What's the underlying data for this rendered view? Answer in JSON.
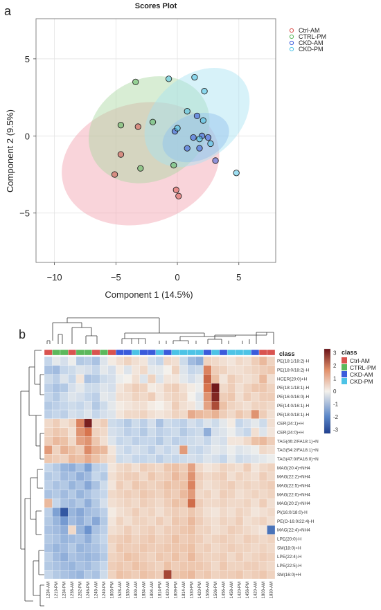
{
  "panels": {
    "a": "a",
    "b": "b"
  },
  "colors": {
    "ctrl_am": "#d9534f",
    "ctrl_pm": "#5cb85c",
    "ckd_am": "#3b5bdb",
    "ckd_pm": "#4dc3e6",
    "heat_low": "#1f3f8f",
    "heat_mid": "#f4f1ec",
    "heat_high": "#6b1218"
  },
  "chart_data": [
    {
      "type": "scatter",
      "title": "Scores Plot",
      "xlabel": "Component 1 (14.5%)",
      "ylabel": "Component  2 (9.5%)",
      "xlim": [
        -11.5,
        8
      ],
      "ylim": [
        -8.2,
        7.6
      ],
      "xticks": [
        -10,
        -5,
        0,
        5
      ],
      "yticks": [
        -5,
        0,
        5
      ],
      "grid": true,
      "legend_position": "top-right",
      "series": [
        {
          "name": "Ctrl-AM",
          "color": "#d9534f",
          "points": [
            [
              -3.2,
              0.6
            ],
            [
              -4.6,
              -1.2
            ],
            [
              -5.1,
              -2.5
            ],
            [
              -0.1,
              -3.5
            ],
            [
              0.1,
              -3.9
            ]
          ]
        },
        {
          "name": "CTRL-PM",
          "color": "#5cb85c",
          "points": [
            [
              -3.4,
              3.5
            ],
            [
              -4.6,
              0.7
            ],
            [
              -2.0,
              0.9
            ],
            [
              -3.0,
              -2.1
            ],
            [
              -0.3,
              -1.9
            ]
          ]
        },
        {
          "name": "CKD-AM",
          "color": "#3b5bdb",
          "points": [
            [
              0.8,
              -0.8
            ],
            [
              1.3,
              -0.1
            ],
            [
              1.8,
              -0.8
            ],
            [
              2.0,
              0.0
            ],
            [
              1.6,
              1.3
            ],
            [
              2.5,
              -0.1
            ],
            [
              3.1,
              -1.6
            ],
            [
              -0.2,
              0.3
            ]
          ]
        },
        {
          "name": "CKD-PM",
          "color": "#4dc3e6",
          "points": [
            [
              -0.7,
              3.7
            ],
            [
              1.4,
              3.8
            ],
            [
              2.2,
              2.9
            ],
            [
              0.8,
              1.6
            ],
            [
              2.1,
              1.0
            ],
            [
              2.7,
              -0.5
            ],
            [
              4.8,
              -2.4
            ],
            [
              0.0,
              0.5
            ],
            [
              1.8,
              -0.2
            ]
          ]
        }
      ],
      "ellipses": [
        {
          "series": "Ctrl-AM",
          "color": "#f2a0ae",
          "cx": -3.0,
          "cy": -1.8,
          "rx": 6.5,
          "ry": 3.9,
          "angle": -15
        },
        {
          "series": "CTRL-PM",
          "color": "#a8d8a0",
          "cx": -2.3,
          "cy": 0.4,
          "rx": 5.1,
          "ry": 3.3,
          "angle": -27
        },
        {
          "series": "CKD-AM",
          "color": "#7fa3e8",
          "cx": 1.5,
          "cy": -0.1,
          "rx": 2.8,
          "ry": 1.5,
          "angle": -20
        },
        {
          "series": "CKD-PM",
          "color": "#a7e2f1",
          "cx": 1.6,
          "cy": 1.2,
          "rx": 4.8,
          "ry": 2.7,
          "angle": -40
        }
      ]
    },
    {
      "type": "heatmap",
      "legend_title": "class",
      "class_legend": [
        "Ctrl-AM",
        "CTRL-PM",
        "CKD-AM",
        "CKD-PM"
      ],
      "colorbar_ticks": [
        3,
        2,
        1,
        0,
        -1,
        -2,
        -3
      ],
      "value_range": [
        -3.3,
        3.3
      ],
      "columns": [
        "1234-AM",
        "1219-PM",
        "1234-PM",
        "1238-AM",
        "1252-PM",
        "1246-PM",
        "1248-AM",
        "1249-PM",
        "1803-PM",
        "1528-AM",
        "1530-AM",
        "1809-AM",
        "1834-AM",
        "1804-AM",
        "1814-PM",
        "1420-AM",
        "1809-PM",
        "1814-AM",
        "1530-PM",
        "1420-PM",
        "1506-AM",
        "1506-PM",
        "1456-AM",
        "1458-AM",
        "1420-PM",
        "1456-PM",
        "1420-AM",
        "1803-AM",
        "1830-AM"
      ],
      "column_classes": [
        "Ctrl-AM",
        "CTRL-PM",
        "CTRL-PM",
        "Ctrl-AM",
        "CTRL-PM",
        "CTRL-PM",
        "Ctrl-AM",
        "CTRL-PM",
        "Ctrl-AM",
        "CKD-AM",
        "CKD-AM",
        "CKD-PM",
        "CKD-AM",
        "CKD-AM",
        "CKD-PM",
        "CKD-AM",
        "CKD-PM",
        "CKD-PM",
        "CKD-PM",
        "CKD-PM",
        "CKD-AM",
        "CKD-PM",
        "CKD-AM",
        "CKD-PM",
        "CKD-PM",
        "CKD-PM",
        "CKD-AM",
        "Ctrl-AM",
        "Ctrl-AM"
      ],
      "rows": [
        "PE(18:1/18:2)-H",
        "PE(18:0/18:2)-H",
        "HCER(20:0)+H",
        "PE(18:1/18:1)-H",
        "PE(16:0/16:0)-H",
        "PE(14:0/16:1)-H",
        "PE(18:0/18:1)-H",
        "CER(24:1)+H",
        "CER(24:0)+H",
        "TAG(46:2/FA18:1)+N",
        "TAG(54:2/FA18:1)+N",
        "TAG(47:0/FA16:0)+N",
        "MAG(20:4)+NH4",
        "MAG(22:2)+NH4",
        "MAG(22:5)+NH4",
        "MAG(22:0)+NH4",
        "MAG(20:2)+NH4",
        "PI(16:0/18:0)-H",
        "PE(O-16:0/22:4)-H",
        "MAG(22:4)+NH4",
        "LPE(20:0)-H",
        "SM(18:0)+H",
        "LPE(22:4)-H",
        "LPE(22:5)-H",
        "SM(16:0)+H"
      ],
      "values": [
        [
          -0.6,
          -0.2,
          -0.4,
          -0.1,
          -0.8,
          -0.7,
          -0.9,
          -0.3,
          0.1,
          0.3,
          0.5,
          0.3,
          0.2,
          -0.4,
          -0.6,
          0.4,
          0.3,
          -0.5,
          -1.0,
          -1.2,
          0.5,
          0.4,
          0.3,
          0.2,
          0.4,
          0.3,
          0.6,
          0.9,
          0.5
        ],
        [
          -0.9,
          -1.0,
          -0.6,
          -0.5,
          -0.3,
          -0.4,
          -0.6,
          -0.2,
          -0.4,
          0.1,
          -0.3,
          0.2,
          0.4,
          -0.2,
          -0.2,
          0.0,
          0.5,
          -0.3,
          -0.6,
          -0.5,
          1.6,
          0.6,
          0.5,
          0.3,
          0.3,
          0.4,
          0.5,
          0.6,
          0.7
        ],
        [
          -0.5,
          -0.7,
          -0.3,
          -0.6,
          0.2,
          -0.9,
          -0.8,
          -0.5,
          -0.4,
          -0.1,
          0.0,
          0.3,
          -0.3,
          0.5,
          -0.3,
          0.2,
          0.2,
          -0.2,
          -0.4,
          -0.2,
          2.0,
          0.8,
          0.2,
          0.6,
          0.4,
          0.3,
          0.4,
          0.9,
          0.3
        ],
        [
          -0.7,
          -0.9,
          -0.8,
          -0.4,
          -0.2,
          -0.5,
          -0.5,
          -0.3,
          -0.4,
          0.2,
          0.4,
          0.6,
          0.5,
          0.1,
          0.2,
          0.5,
          0.6,
          0.3,
          0.1,
          -0.1,
          1.8,
          3.2,
          0.4,
          0.6,
          0.3,
          0.5,
          0.7,
          0.7,
          0.5
        ],
        [
          -0.6,
          -0.8,
          -0.5,
          -0.3,
          -0.4,
          -0.6,
          -0.7,
          -0.2,
          -0.3,
          0.3,
          0.3,
          0.5,
          0.4,
          0.6,
          0.2,
          0.4,
          0.5,
          0.4,
          0.0,
          -0.3,
          1.4,
          3.0,
          0.6,
          0.7,
          0.3,
          0.6,
          0.4,
          0.6,
          0.6
        ],
        [
          -0.8,
          -0.7,
          -0.6,
          -0.5,
          -0.6,
          -0.4,
          -0.8,
          -0.5,
          -0.2,
          0.1,
          0.2,
          0.3,
          0.3,
          0.1,
          0.0,
          0.2,
          0.6,
          0.3,
          0.2,
          -0.2,
          1.2,
          2.4,
          0.8,
          0.5,
          0.4,
          0.3,
          0.5,
          0.5,
          0.4
        ],
        [
          -0.7,
          -0.6,
          -0.7,
          -0.4,
          -0.5,
          -0.3,
          -0.6,
          -0.4,
          -0.3,
          0.2,
          0.4,
          0.4,
          0.5,
          0.3,
          0.2,
          0.3,
          0.5,
          0.4,
          1.1,
          0.9,
          0.8,
          1.0,
          0.6,
          0.4,
          0.7,
          0.5,
          1.4,
          0.6,
          0.3
        ],
        [
          0.4,
          0.6,
          0.3,
          0.5,
          1.6,
          3.1,
          0.4,
          0.6,
          -0.5,
          -0.6,
          -0.8,
          -0.5,
          -0.7,
          -0.4,
          -0.9,
          -0.5,
          -0.6,
          -0.7,
          -0.4,
          -0.6,
          -0.3,
          -0.5,
          -0.2,
          0.1,
          -0.6,
          -0.4,
          -0.2,
          -0.5,
          0.3
        ],
        [
          0.5,
          0.7,
          0.6,
          0.3,
          1.4,
          1.8,
          0.5,
          0.4,
          -0.4,
          -0.5,
          -0.7,
          -0.6,
          -0.8,
          -0.5,
          -0.7,
          -0.6,
          -0.5,
          -0.8,
          -0.6,
          -0.5,
          -1.2,
          -0.4,
          -0.3,
          -0.1,
          -0.4,
          -0.6,
          0.3,
          -0.3,
          0.2
        ],
        [
          0.6,
          0.9,
          0.8,
          0.4,
          1.2,
          1.4,
          0.7,
          0.3,
          -0.3,
          -0.6,
          -0.5,
          -0.7,
          -0.6,
          -0.6,
          -0.8,
          -0.5,
          -0.7,
          -0.6,
          -0.5,
          -0.4,
          -0.6,
          -0.3,
          -0.4,
          0.2,
          0.2,
          0.4,
          0.8,
          0.9,
          0.6
        ],
        [
          1.3,
          0.5,
          1.0,
          0.8,
          0.6,
          1.5,
          1.0,
          0.9,
          0.2,
          -0.4,
          -0.6,
          -0.4,
          -0.5,
          -0.7,
          -0.4,
          -0.6,
          -0.4,
          1.3,
          -0.5,
          -0.6,
          -0.4,
          -0.2,
          -0.3,
          -0.1,
          -0.3,
          -0.2,
          -0.1,
          0.4,
          0.3
        ],
        [
          0.7,
          0.6,
          0.5,
          0.9,
          0.8,
          1.1,
          0.8,
          0.5,
          0.3,
          -0.5,
          -0.4,
          -0.6,
          -0.6,
          -0.5,
          -0.7,
          -0.5,
          -0.6,
          -0.5,
          -0.4,
          -0.5,
          -0.3,
          -0.4,
          -0.6,
          -0.2,
          -0.5,
          -0.4,
          -0.3,
          -0.2,
          -0.1
        ],
        [
          -0.6,
          -0.8,
          -1.1,
          -1.2,
          -0.9,
          -1.4,
          -0.7,
          -0.6,
          0.2,
          0.4,
          0.5,
          0.3,
          0.6,
          0.5,
          0.4,
          0.7,
          0.8,
          0.6,
          1.2,
          0.4,
          0.2,
          0.3,
          0.5,
          0.4,
          0.3,
          0.6,
          0.2,
          0.4,
          0.5
        ],
        [
          -0.8,
          -0.7,
          -1.0,
          -0.9,
          -1.2,
          -1.0,
          -0.6,
          -0.8,
          0.3,
          0.5,
          0.6,
          0.6,
          0.4,
          0.7,
          0.5,
          0.6,
          0.9,
          0.7,
          1.4,
          0.6,
          0.4,
          0.5,
          0.6,
          0.3,
          0.5,
          0.4,
          0.3,
          0.6,
          0.4
        ],
        [
          -0.7,
          -0.9,
          -0.8,
          -1.1,
          -0.9,
          -1.3,
          -0.9,
          -0.5,
          0.2,
          0.6,
          0.4,
          0.7,
          0.6,
          0.5,
          0.6,
          0.8,
          0.7,
          0.8,
          1.6,
          0.5,
          0.3,
          0.4,
          0.5,
          0.6,
          0.4,
          0.5,
          0.4,
          0.5,
          0.6
        ],
        [
          -0.9,
          -0.8,
          -1.0,
          -0.8,
          -1.1,
          -0.9,
          -0.7,
          -0.6,
          0.4,
          0.5,
          0.6,
          0.5,
          0.7,
          0.6,
          0.5,
          0.7,
          0.6,
          0.9,
          1.3,
          0.4,
          0.5,
          0.3,
          0.6,
          0.5,
          0.3,
          0.4,
          0.5,
          0.4,
          0.5
        ],
        [
          0.9,
          -0.6,
          -0.9,
          -1.0,
          -0.8,
          -1.2,
          -0.8,
          -0.4,
          0.3,
          0.4,
          0.5,
          0.4,
          0.6,
          0.5,
          0.4,
          0.6,
          0.8,
          0.7,
          1.9,
          0.6,
          0.4,
          0.4,
          0.5,
          0.4,
          0.4,
          0.5,
          0.3,
          0.6,
          0.3
        ],
        [
          -0.7,
          -1.4,
          -2.8,
          -1.1,
          -1.3,
          -1.0,
          -0.9,
          -0.7,
          0.1,
          0.3,
          0.4,
          0.6,
          0.4,
          0.5,
          0.3,
          0.5,
          0.6,
          0.5,
          0.7,
          0.5,
          0.3,
          0.2,
          0.4,
          0.3,
          0.5,
          0.4,
          0.2,
          0.3,
          0.4
        ],
        [
          -0.8,
          -1.1,
          -1.5,
          -1.0,
          -1.2,
          -0.9,
          -1.3,
          -0.8,
          0.2,
          0.5,
          0.3,
          0.5,
          0.5,
          0.4,
          0.6,
          0.4,
          0.7,
          0.6,
          0.9,
          0.6,
          0.4,
          0.3,
          0.5,
          0.4,
          0.6,
          0.3,
          0.4,
          0.5,
          0.3
        ],
        [
          -0.9,
          -1.0,
          -1.2,
          0.4,
          -1.1,
          -1.6,
          -0.9,
          -0.7,
          0.3,
          0.4,
          0.6,
          0.4,
          0.5,
          0.6,
          0.4,
          0.6,
          0.6,
          0.7,
          0.8,
          0.5,
          0.5,
          0.3,
          0.4,
          0.6,
          0.5,
          0.4,
          0.3,
          0.2,
          -2.2
        ],
        [
          -0.8,
          -0.9,
          -1.1,
          -1.0,
          -0.9,
          -1.2,
          -0.8,
          -0.6,
          0.5,
          0.6,
          0.7,
          0.5,
          0.6,
          0.7,
          0.5,
          0.6,
          0.8,
          0.6,
          0.7,
          0.6,
          0.4,
          0.5,
          0.6,
          0.5,
          0.4,
          0.6,
          0.5,
          0.4,
          0.5
        ],
        [
          -0.9,
          -1.1,
          -1.0,
          -0.8,
          -1.1,
          -1.0,
          -0.9,
          -0.7,
          0.4,
          0.7,
          0.6,
          0.6,
          0.7,
          0.6,
          0.6,
          0.7,
          0.7,
          0.7,
          0.8,
          0.5,
          0.6,
          0.4,
          0.5,
          0.6,
          0.5,
          0.5,
          0.4,
          0.5,
          0.4
        ],
        [
          -0.7,
          -1.0,
          -1.2,
          -0.9,
          -1.0,
          -1.1,
          -1.0,
          -0.8,
          0.5,
          0.6,
          0.8,
          0.7,
          0.6,
          0.5,
          0.7,
          0.6,
          0.8,
          0.6,
          0.9,
          0.6,
          0.5,
          0.5,
          0.6,
          0.4,
          0.6,
          0.4,
          0.5,
          0.6,
          0.5
        ],
        [
          -0.8,
          -0.9,
          -1.0,
          -1.1,
          -0.9,
          -1.0,
          -0.8,
          -0.6,
          0.6,
          0.7,
          0.6,
          0.8,
          0.7,
          0.6,
          0.5,
          0.8,
          0.6,
          0.7,
          0.7,
          0.7,
          0.6,
          0.4,
          0.7,
          0.5,
          0.5,
          0.6,
          0.6,
          0.5,
          0.4
        ],
        [
          -0.6,
          -0.8,
          -0.9,
          -1.0,
          -1.1,
          -0.8,
          -0.9,
          -0.5,
          0.5,
          0.8,
          0.7,
          0.6,
          0.8,
          0.7,
          0.6,
          2.5,
          0.7,
          0.8,
          0.9,
          0.6,
          0.7,
          0.5,
          0.6,
          0.6,
          0.7,
          0.5,
          0.6,
          0.7,
          0.5
        ]
      ]
    }
  ]
}
